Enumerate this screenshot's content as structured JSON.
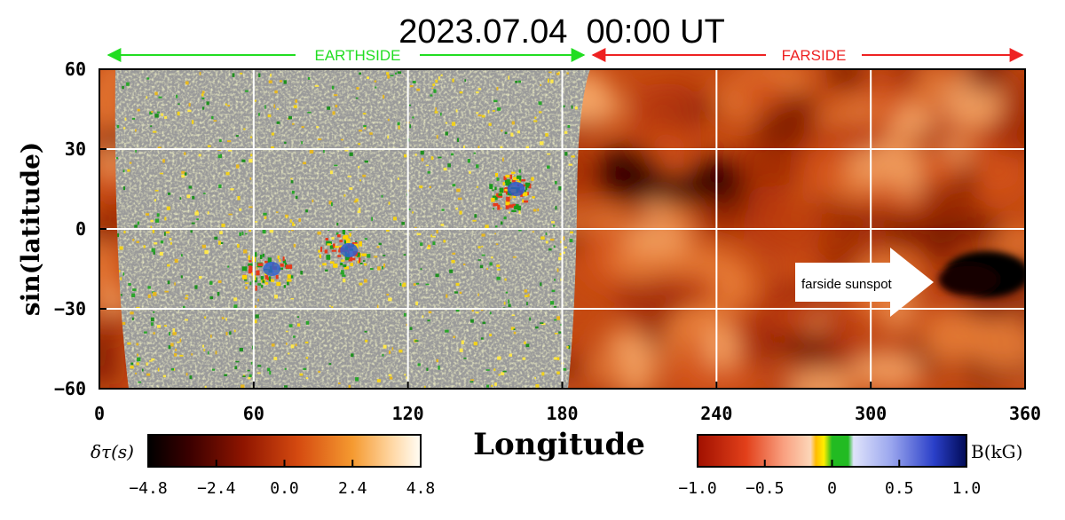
{
  "chart_data": {
    "type": "heatmap",
    "title": "2023.07.04  00:00 UT",
    "xlabel": "Longitude",
    "ylabel": "sin(latitude)",
    "xlim": [
      0,
      360
    ],
    "ylim": [
      -60,
      60
    ],
    "x_ticks": [
      "0",
      "60",
      "120",
      "180",
      "240",
      "300",
      "360"
    ],
    "y_ticks": [
      "60",
      "30",
      "0",
      "−30",
      "−60"
    ],
    "grid": true,
    "regions": [
      {
        "label": "EARTHSIDE",
        "x_range": [
          5,
          190
        ],
        "color": "#22dd22"
      },
      {
        "label": "FARSIDE",
        "x_range": [
          190,
          360
        ],
        "color": "#ee2222"
      }
    ],
    "annotations": [
      {
        "text": "farside sunspot",
        "x": 325,
        "y": -17
      }
    ],
    "colorbars": [
      {
        "label": "δτ(s)",
        "ticks": [
          "−4.8",
          "−2.4",
          "0.0",
          "2.4",
          "4.8"
        ],
        "range": [
          -4.8,
          4.8
        ]
      },
      {
        "label": "B(kG)",
        "ticks": [
          "−1.0",
          "−0.5",
          "0",
          "0.5",
          "1.0"
        ],
        "range": [
          -1.0,
          1.0
        ]
      }
    ],
    "features": [
      {
        "kind": "farside sunspot",
        "lon": 345,
        "lat": -17,
        "value": -4.8
      },
      {
        "kind": "active region",
        "lon": 160,
        "lat": 15
      },
      {
        "kind": "active region",
        "lon": 65,
        "lat": -15
      },
      {
        "kind": "active region",
        "lon": 95,
        "lat": -8
      }
    ]
  }
}
